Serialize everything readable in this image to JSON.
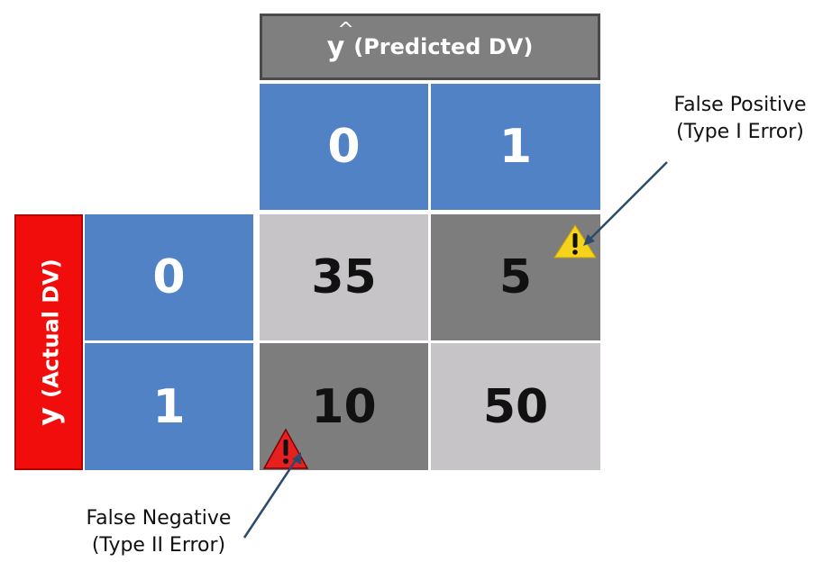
{
  "predicted_header": {
    "symbol": "y",
    "label": "(Predicted DV)"
  },
  "actual_header": {
    "symbol": "y",
    "label": "(Actual DV)"
  },
  "predicted_classes": [
    "0",
    "1"
  ],
  "actual_classes": [
    "0",
    "1"
  ],
  "matrix": [
    [
      "35",
      "5"
    ],
    [
      "10",
      "50"
    ]
  ],
  "annotations": {
    "false_positive": {
      "line1": "False Positive",
      "line2": "(Type I Error)"
    },
    "false_negative": {
      "line1": "False Negative",
      "line2": "(Type II Error)"
    }
  },
  "colors": {
    "class_blue": "#5282c6",
    "header_gray": "#7f7f7f",
    "header_red": "#f20d0d",
    "cell_light": "#c6c4c6",
    "cell_dark": "#7e7d7e",
    "warning_yellow": "#f5d21b",
    "warning_red": "#e62020",
    "arrow": "#2e4a6b"
  },
  "icons": [
    "warning-triangle-icon"
  ]
}
